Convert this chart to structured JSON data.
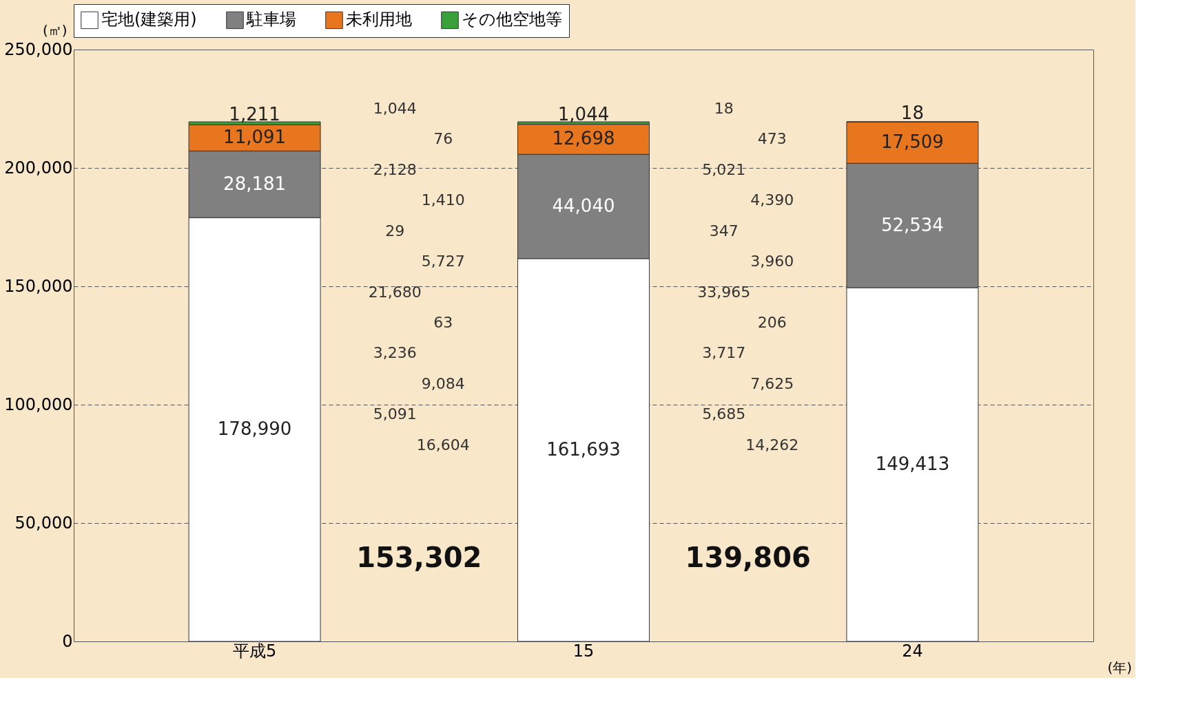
{
  "chart_data": {
    "type": "bar",
    "stacked": true,
    "categories": [
      "平成5",
      "15",
      "24"
    ],
    "series": [
      {
        "name": "宅地(建築用)",
        "color": "#ffffff",
        "values": [
          178990,
          161693,
          149413
        ],
        "value_labels": [
          "178,990",
          "161,693",
          "149,413"
        ]
      },
      {
        "name": "駐車場",
        "color": "#808080",
        "values": [
          28181,
          44040,
          52534
        ],
        "value_labels": [
          "28,181",
          "44,040",
          "52,534"
        ]
      },
      {
        "name": "未利用地",
        "color": "#e8761e",
        "values": [
          11091,
          12698,
          17509
        ],
        "value_labels": [
          "11,091",
          "12,698",
          "17,509"
        ]
      },
      {
        "name": "その他空地等",
        "color": "#3aa03a",
        "values": [
          1211,
          1044,
          18
        ],
        "value_labels": [
          "1,211",
          "1,044",
          "18"
        ]
      }
    ],
    "ylabel": "(㎡)",
    "xlabel": "(年)",
    "ylim": [
      0,
      250000
    ],
    "yticks": [
      0,
      {
        "value": 50000,
        "label": "50,000"
      },
      {
        "value": 100000,
        "label": "100,000"
      },
      {
        "value": 150000,
        "label": "150,000"
      },
      {
        "value": 200000,
        "label": "200,000"
      },
      {
        "value": 250000,
        "label": "250,000"
      }
    ],
    "grid": "y",
    "legend": "top",
    "annotations": [
      "1,044",
      "76",
      "2,128",
      "1,410",
      "29",
      "5,727",
      "21,680",
      "63",
      "3,236",
      "9,084",
      "5,091",
      "16,604",
      "153,302",
      "18",
      "473",
      "5,021",
      "4,390",
      "347",
      "3,960",
      "33,965",
      "206",
      "3,717",
      "7,625",
      "5,685",
      "14,262",
      "139,806"
    ]
  }
}
